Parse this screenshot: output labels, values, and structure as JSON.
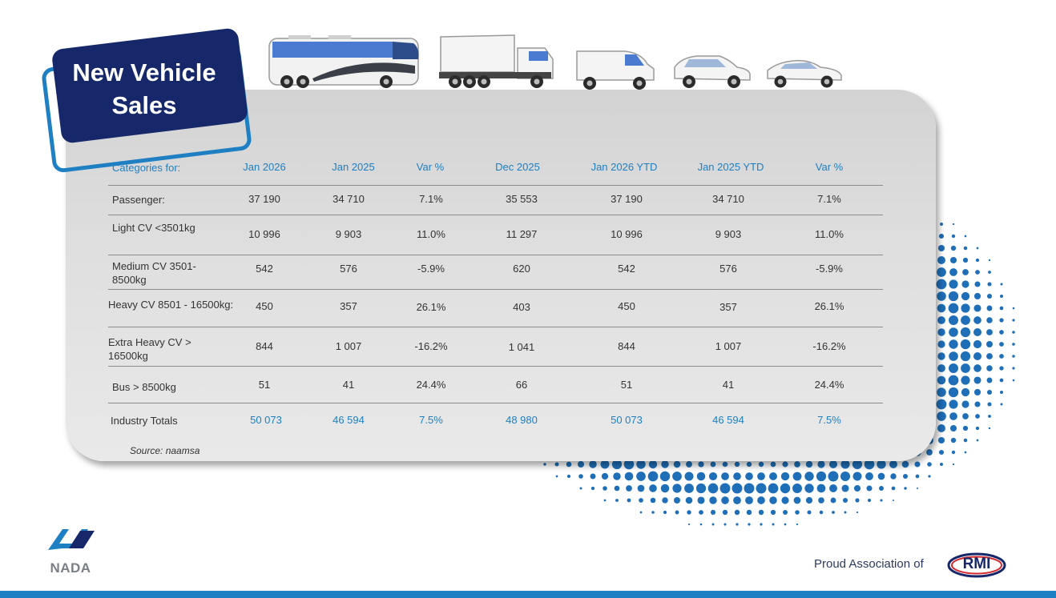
{
  "title": "New Vehicle Sales",
  "vehicle_icons": [
    "bus-icon",
    "truck-icon",
    "van-icon",
    "suv-icon",
    "sedan-icon"
  ],
  "colors": {
    "navy": "#16286a",
    "blue": "#1f7fc3",
    "card": "#dedede"
  },
  "table": {
    "headers": [
      "Categories for:",
      "Jan 2026",
      "Jan 2025",
      "Var %",
      "Dec 2025",
      "Jan 2026 YTD",
      "Jan 2025 YTD",
      "Var %"
    ],
    "rows": [
      {
        "label": "Passenger:",
        "values": [
          "37 190",
          "34 710",
          "7.1%",
          "35 553",
          "37 190",
          "34 710",
          "7.1%"
        ]
      },
      {
        "label": "Light CV <3501kg",
        "values": [
          "10 996",
          "9 903",
          "11.0%",
          "11 297",
          "10 996",
          "9 903",
          "11.0%"
        ]
      },
      {
        "label": "Medium CV 3501-\n8500kg",
        "values": [
          "542",
          "576",
          "-5.9%",
          "620",
          "542",
          "576",
          "-5.9%"
        ]
      },
      {
        "label": "Heavy CV 8501 - 16500kg:",
        "values": [
          "450",
          "357",
          "26.1%",
          "403",
          "450",
          "357",
          "26.1%"
        ]
      },
      {
        "label": "Extra Heavy CV >\n16500kg",
        "values": [
          "844",
          "1 007",
          "-16.2%",
          "1 041",
          "844",
          "1 007",
          "-16.2%"
        ]
      },
      {
        "label": "Bus > 8500kg",
        "values": [
          "51",
          "41",
          "24.4%",
          "66",
          "51",
          "41",
          "24.4%"
        ]
      }
    ],
    "total": {
      "label": "Industry Totals",
      "values": [
        "50 073",
        "46 594",
        "7.5%",
        "48 980",
        "50 073",
        "46 594",
        "7.5%"
      ]
    }
  },
  "source": "Source: naamsa",
  "footer": {
    "nada_logo_text": "NADA",
    "association_text": "Proud Association of",
    "rmi_logo_text": "RMI"
  }
}
